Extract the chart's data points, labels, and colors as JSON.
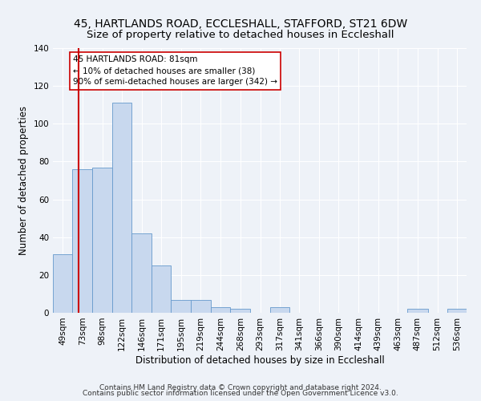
{
  "title1": "45, HARTLANDS ROAD, ECCLESHALL, STAFFORD, ST21 6DW",
  "title2": "Size of property relative to detached houses in Eccleshall",
  "xlabel": "Distribution of detached houses by size in Eccleshall",
  "ylabel": "Number of detached properties",
  "bar_color": "#c8d8ee",
  "bar_edge_color": "#6699cc",
  "background_color": "#eef2f8",
  "grid_color": "#ffffff",
  "bin_edges": [
    49,
    73,
    98,
    122,
    146,
    171,
    195,
    219,
    244,
    268,
    293,
    317,
    341,
    366,
    390,
    414,
    439,
    463,
    487,
    512,
    536,
    560
  ],
  "bin_labels": [
    "49sqm",
    "73sqm",
    "98sqm",
    "122sqm",
    "146sqm",
    "171sqm",
    "195sqm",
    "219sqm",
    "244sqm",
    "268sqm",
    "293sqm",
    "317sqm",
    "341sqm",
    "366sqm",
    "390sqm",
    "414sqm",
    "439sqm",
    "463sqm",
    "487sqm",
    "512sqm",
    "536sqm"
  ],
  "values": [
    31,
    76,
    77,
    111,
    42,
    25,
    7,
    7,
    3,
    2,
    0,
    3,
    0,
    0,
    0,
    0,
    0,
    0,
    2,
    0,
    2
  ],
  "property_line_x": 81,
  "property_line_color": "#cc0000",
  "annotation_line1": "45 HARTLANDS ROAD: 81sqm",
  "annotation_line2": "← 10% of detached houses are smaller (38)",
  "annotation_line3": "90% of semi-detached houses are larger (342) →",
  "annotation_box_color": "#ffffff",
  "annotation_box_edge_color": "#cc0000",
  "ylim": [
    0,
    140
  ],
  "yticks": [
    0,
    20,
    40,
    60,
    80,
    100,
    120,
    140
  ],
  "footnote1": "Contains HM Land Registry data © Crown copyright and database right 2024.",
  "footnote2": "Contains public sector information licensed under the Open Government Licence v3.0.",
  "title1_fontsize": 10,
  "title2_fontsize": 9.5,
  "axis_label_fontsize": 8.5,
  "tick_fontsize": 7.5,
  "annotation_fontsize": 7.5,
  "footnote_fontsize": 6.5
}
